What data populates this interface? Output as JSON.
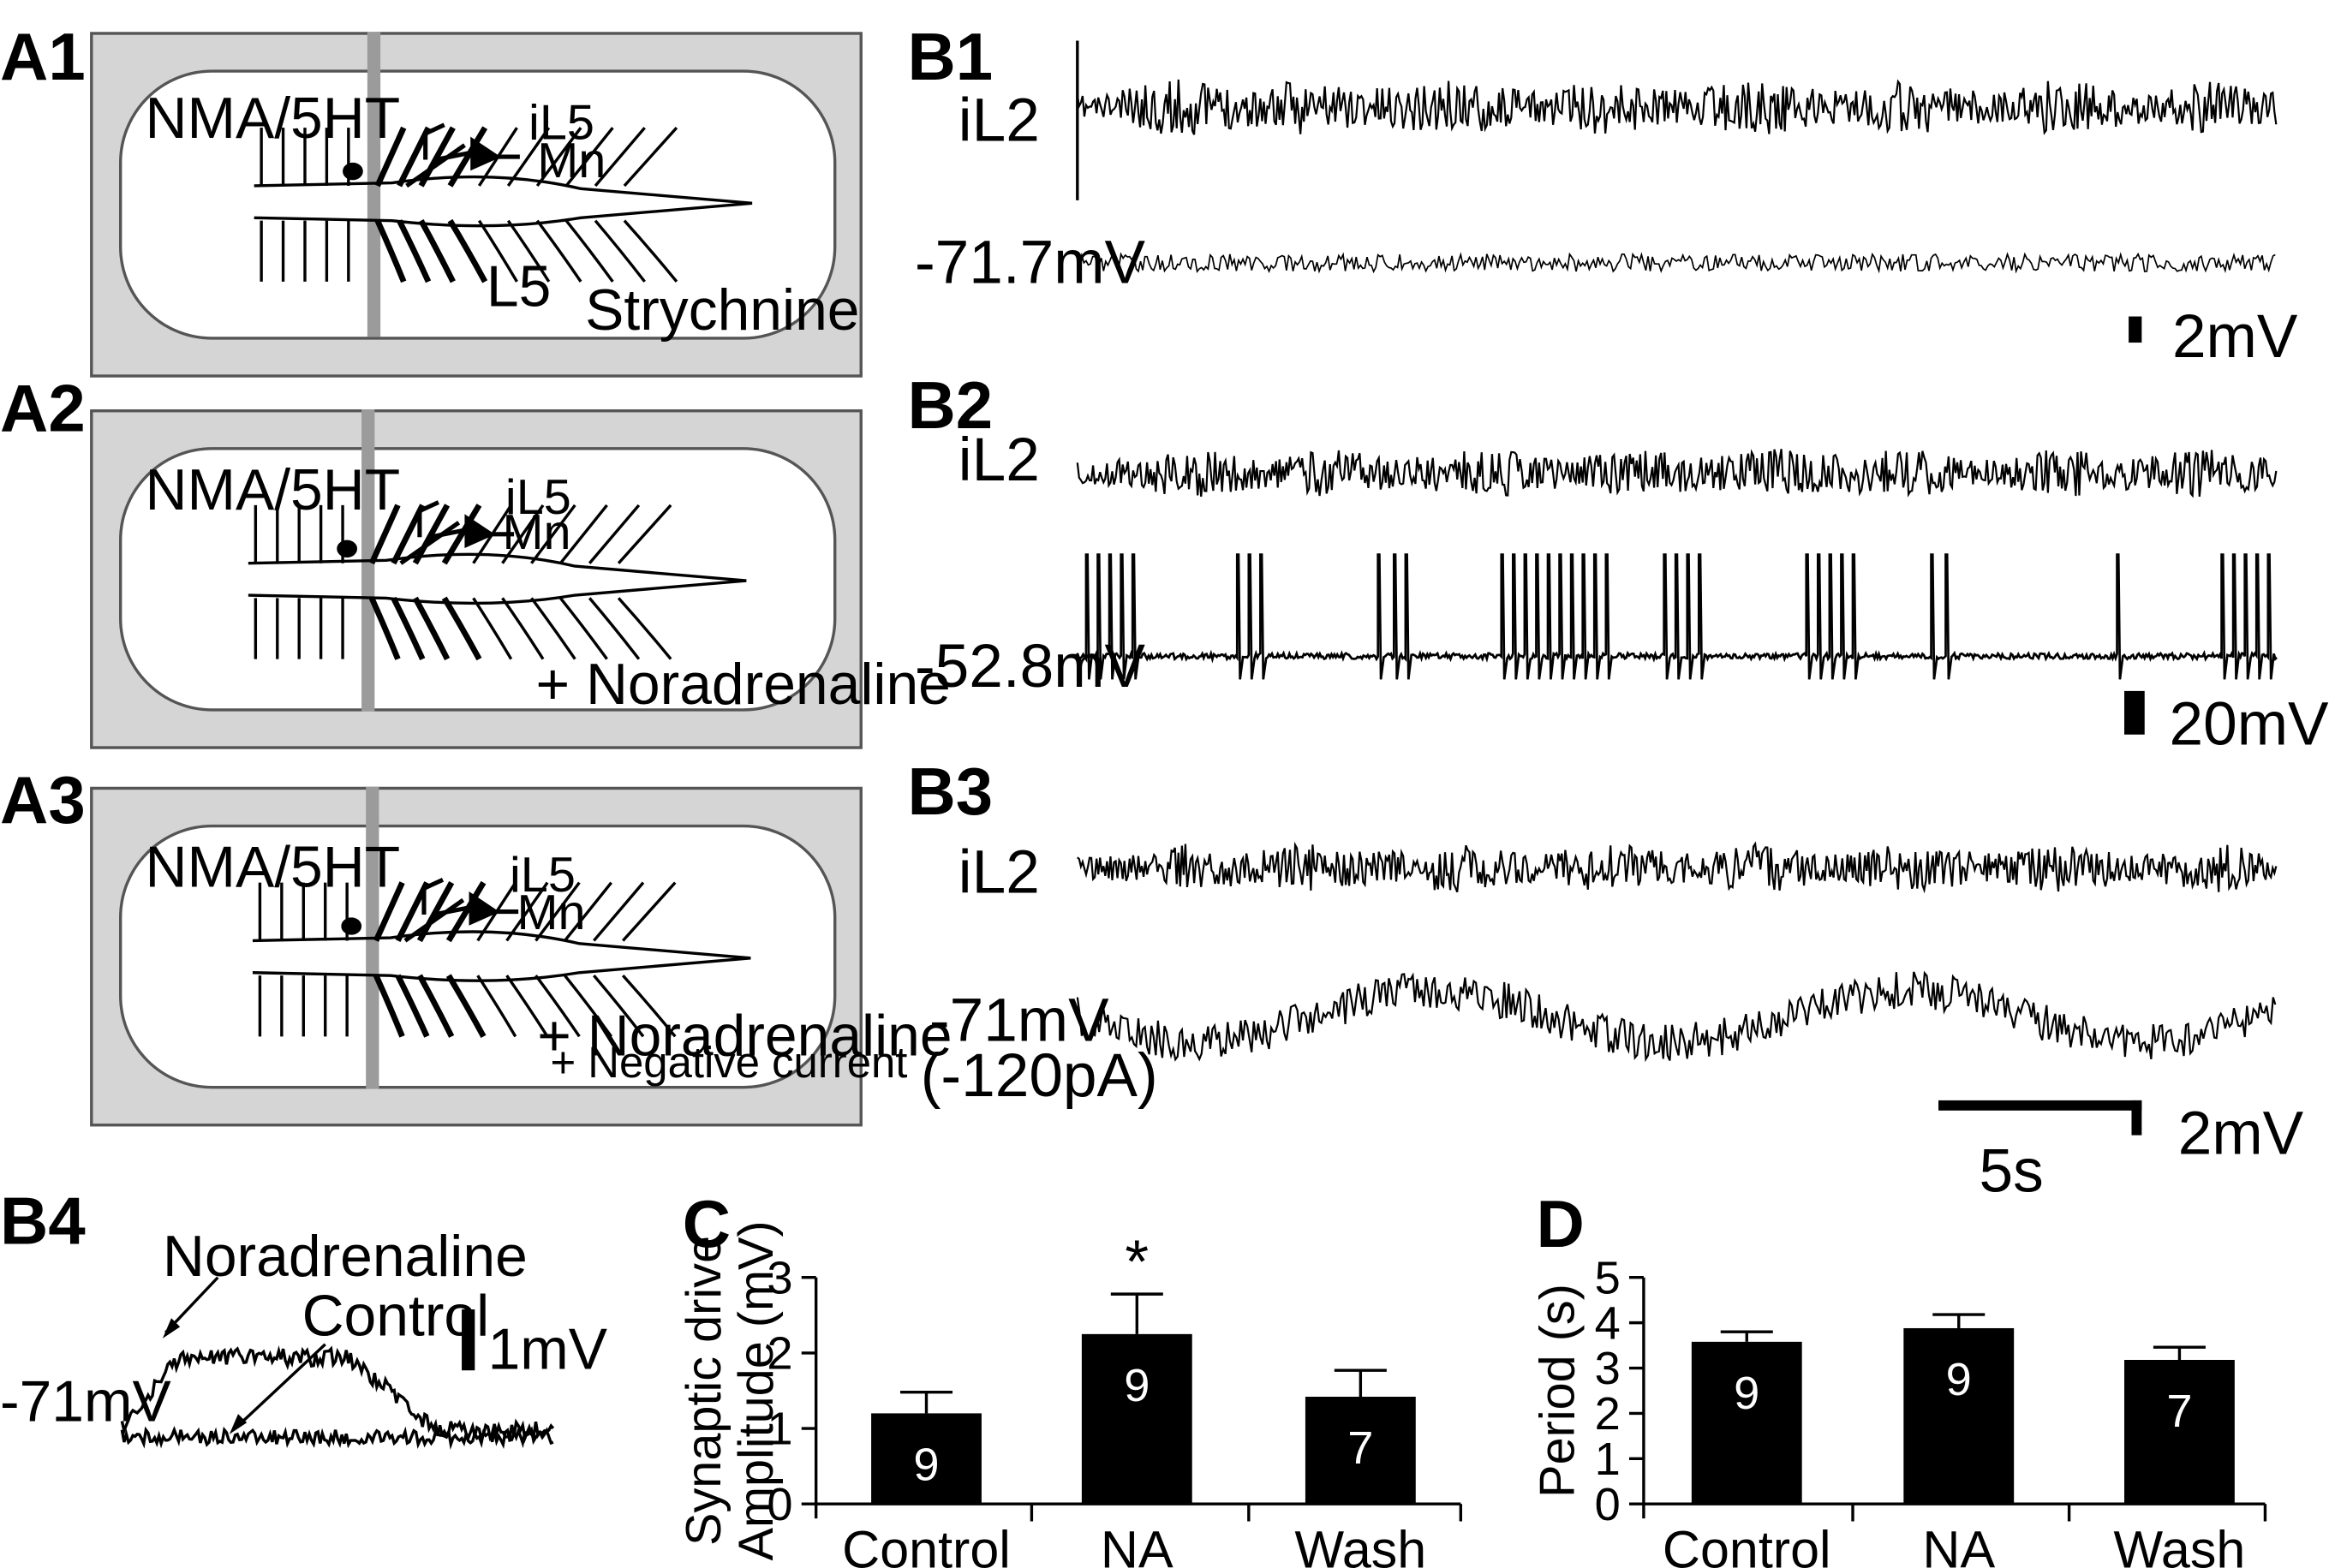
{
  "panels": {
    "A1": {
      "label": "A1",
      "bath": "NMA/5HT",
      "root_label": "iL5",
      "cell_label": "Mn",
      "segment_label": "L5",
      "condition": "Strychnine",
      "condition2": ""
    },
    "A2": {
      "label": "A2",
      "bath": "NMA/5HT",
      "root_label": "iL5",
      "cell_label": "Mn",
      "segment_label": "",
      "condition": "+ Noradrenaline",
      "condition2": ""
    },
    "A3": {
      "label": "A3",
      "bath": "NMA/5HT",
      "root_label": "iL5",
      "cell_label": "Mn",
      "segment_label": "",
      "condition": "+ Noradrenaline",
      "condition2": "+ Negative current"
    }
  },
  "traces": {
    "B1": {
      "label": "B1",
      "root": "iL2",
      "vm": "-71.7mV",
      "scale": "2mV"
    },
    "B2": {
      "label": "B2",
      "root": "iL2",
      "vm": "-52.8mV",
      "scale": "20mV"
    },
    "B3": {
      "label": "B3",
      "root": "iL2",
      "vm": "-71mV",
      "current": "(-120pA)",
      "scale": "2mV",
      "time_scale": "5s"
    },
    "B4": {
      "label": "B4",
      "vm": "-71mV",
      "na_label": "Noradrenaline",
      "ctrl_label": "Control",
      "scale": "1mV"
    }
  },
  "chart_data": [
    {
      "panel_label": "C",
      "type": "bar",
      "categories": [
        "Control",
        "NA",
        "Wash"
      ],
      "values": [
        1.2,
        2.25,
        1.42
      ],
      "errors": [
        0.28,
        0.53,
        0.35
      ],
      "n": [
        "9",
        "9",
        "7"
      ],
      "significance": [
        "",
        "*",
        ""
      ],
      "ylabel_line1": "Synaptic drive",
      "ylabel_line2": "Amplitude (mV)",
      "ylim": [
        0,
        3
      ],
      "yticks": [
        "0",
        "1",
        "2",
        "3"
      ],
      "bar_color": "#000000"
    },
    {
      "panel_label": "D",
      "type": "bar",
      "categories": [
        "Control",
        "NA",
        "Wash"
      ],
      "values": [
        3.58,
        3.88,
        3.18
      ],
      "errors": [
        0.22,
        0.3,
        0.28
      ],
      "n": [
        "9",
        "9",
        "7"
      ],
      "significance": [
        "",
        "",
        ""
      ],
      "ylabel": "Period (s)",
      "ylim": [
        0,
        5
      ],
      "yticks": [
        "0",
        "1",
        "2",
        "3",
        "4",
        "5"
      ],
      "bar_color": "#000000"
    }
  ]
}
